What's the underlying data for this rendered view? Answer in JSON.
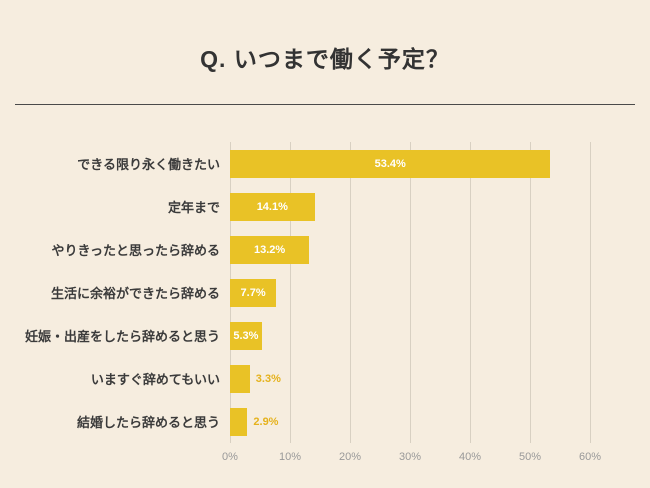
{
  "header": {
    "title": "Q. いつまで働く予定？"
  },
  "colors": {
    "background": "#f6eddf",
    "bar": "#e9c226",
    "title": "#333333",
    "category_text": "#3b3b3b",
    "grid": "#d8d0c2",
    "tick_text": "#999999",
    "value_label_inside": "#ffffff",
    "value_label_outside": "#e5b21d"
  },
  "chart_data": {
    "type": "bar",
    "orientation": "horizontal",
    "title": "Q. いつまで働く予定？",
    "categories": [
      "できる限り永く働きたい",
      "定年まで",
      "やりきったと思ったら辞める",
      "生活に余裕ができたら辞める",
      "妊娠・出産をしたら辞めると思う",
      "いますぐ辞めてもいい",
      "結婚したら辞めると思う"
    ],
    "values": [
      53.4,
      14.1,
      13.2,
      7.7,
      5.3,
      3.3,
      2.9
    ],
    "value_labels": [
      "53.4%",
      "14.1%",
      "13.2%",
      "7.7%",
      "5.3%",
      "3.3%",
      "2.9%"
    ],
    "xlabel": "",
    "ylabel": "",
    "xlim": [
      0,
      60
    ],
    "x_ticks": [
      "0%",
      "10%",
      "20%",
      "30%",
      "40%",
      "50%",
      "60%"
    ],
    "grid": "vertical-only",
    "legend": "none"
  }
}
